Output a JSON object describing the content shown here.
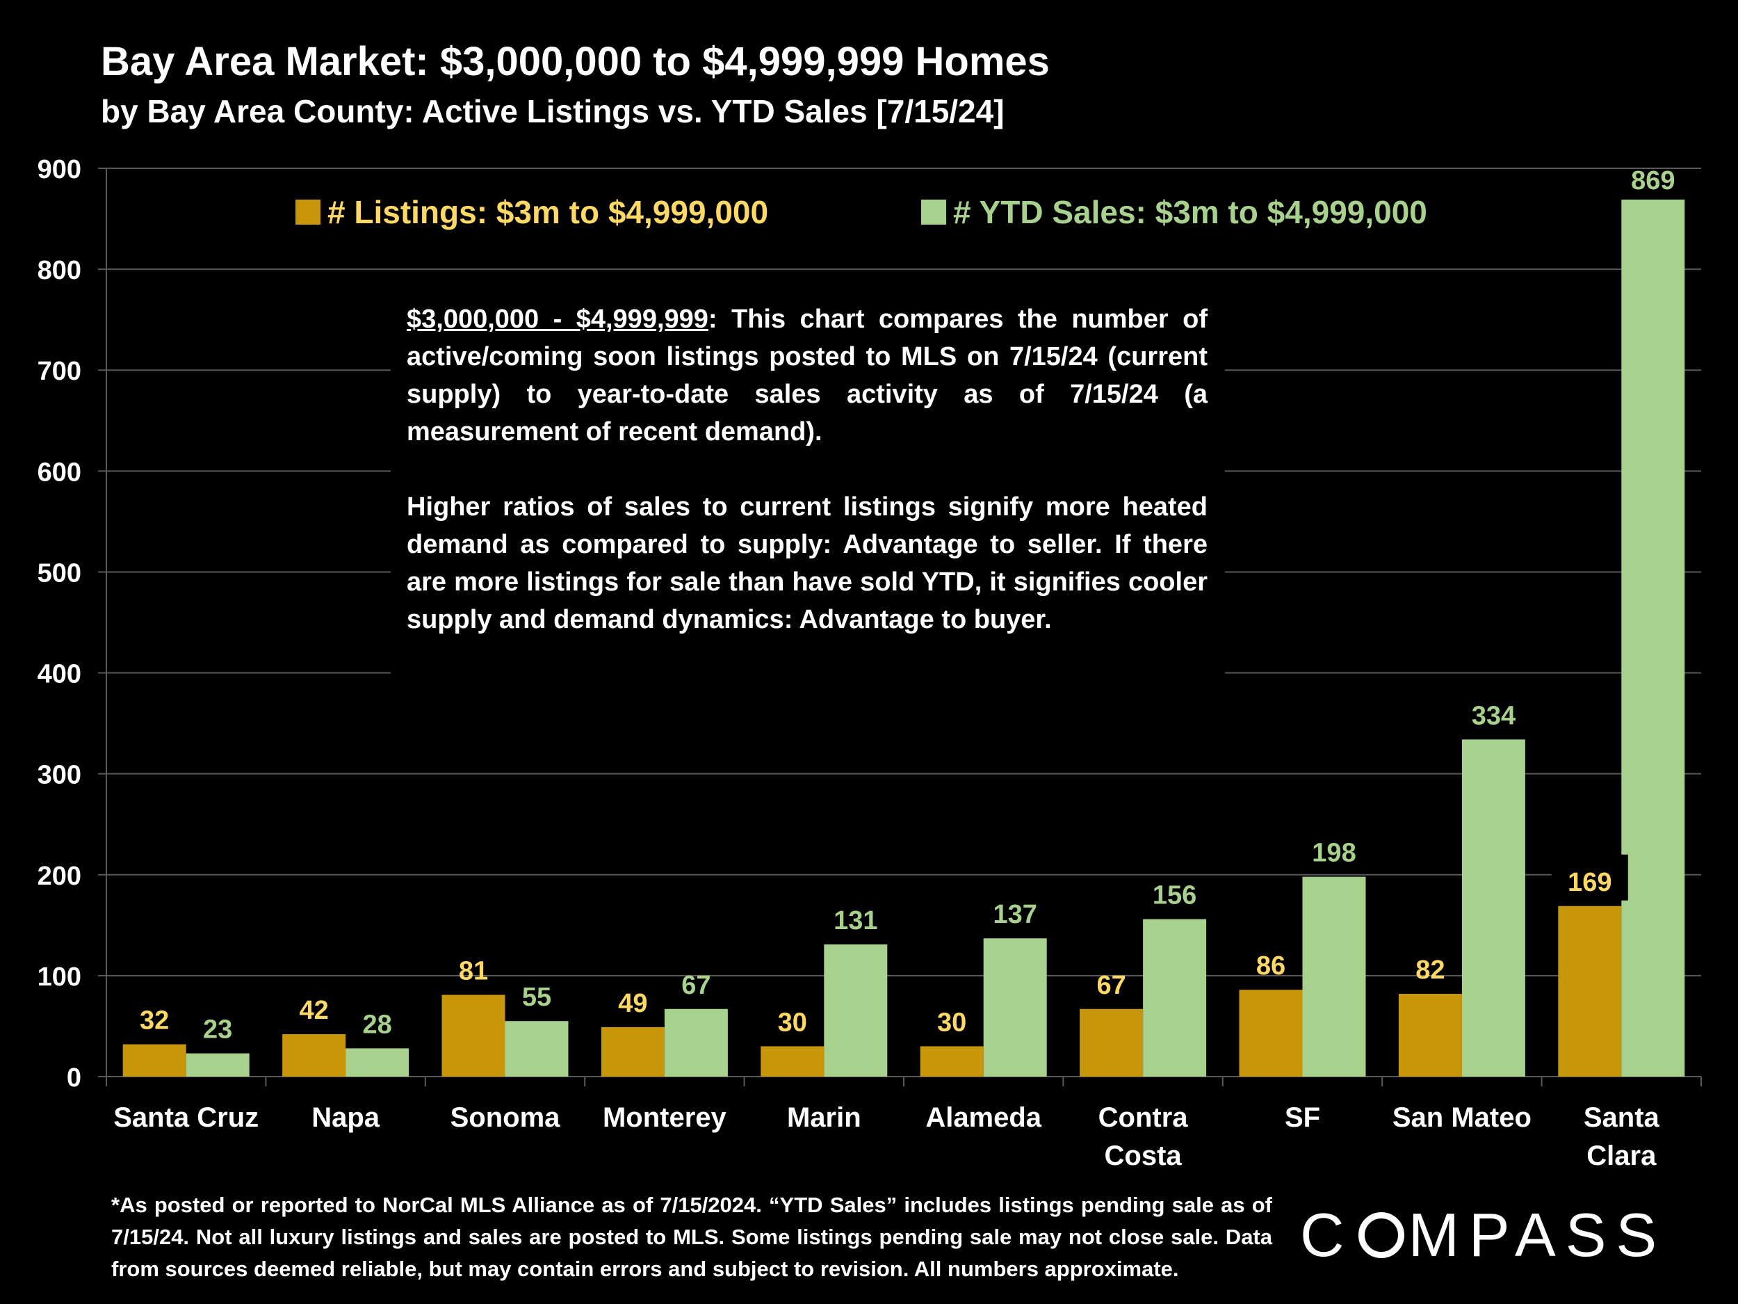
{
  "header": {
    "title": "Bay Area Market: $3,000,000 to $4,999,999 Homes",
    "subtitle": "by Bay Area County:  Active Listings vs. YTD Sales [7/15/24]"
  },
  "info": {
    "heading": "$3,000,000 - $4,999,999",
    "para1": ":  This chart compares the number of active/coming soon listings posted to MLS on 7/15/24 (current supply) to year-to-date sales activity as of 7/15/24 (a measurement of recent demand).",
    "para2": "Higher ratios of sales to current listings signify more heated demand as compared to supply:  Advantage to seller. If there are more listings for sale than have sold YTD, it signifies cooler supply and demand dynamics:  Advantage to buyer."
  },
  "footnote": "*As posted or reported to NorCal MLS Alliance as of 7/15/2024. “YTD Sales” includes listings pending sale as of 7/15/24. Not all luxury listings and sales are posted to MLS. Some listings pending sale may not close sale. Data from sources deemed reliable, but may contain errors and subject to revision. All numbers approximate.",
  "logo": {
    "pre": "C",
    "post": "MPASS"
  },
  "colors": {
    "listings": "#C8960B",
    "sales": "#A9D18E",
    "listings_label": "#FFD966",
    "sales_label": "#A9D18E",
    "grid": "#595959"
  },
  "chart_data": {
    "type": "bar",
    "title": "Bay Area Market: $3,000,000 to $4,999,999 Homes",
    "subtitle": "by Bay Area County:  Active Listings vs. YTD Sales [7/15/24]",
    "categories": [
      [
        "Santa Cruz"
      ],
      [
        "Napa"
      ],
      [
        "Sonoma"
      ],
      [
        "Monterey"
      ],
      [
        "Marin"
      ],
      [
        "Alameda"
      ],
      [
        "Contra",
        "Costa"
      ],
      [
        "SF"
      ],
      [
        "San Mateo"
      ],
      [
        "Santa",
        "Clara"
      ]
    ],
    "series": [
      {
        "name": "# Listings:  $3m to $4,999,000",
        "values": [
          32,
          42,
          81,
          49,
          30,
          30,
          67,
          86,
          82,
          169
        ]
      },
      {
        "name": "# YTD Sales:  $3m to $4,999,000",
        "values": [
          23,
          28,
          55,
          67,
          131,
          137,
          156,
          198,
          334,
          869
        ]
      }
    ],
    "ylim": [
      0,
      900
    ],
    "yticks": [
      0,
      100,
      200,
      300,
      400,
      500,
      600,
      700,
      800,
      900
    ],
    "grid": true,
    "legend": "top"
  }
}
